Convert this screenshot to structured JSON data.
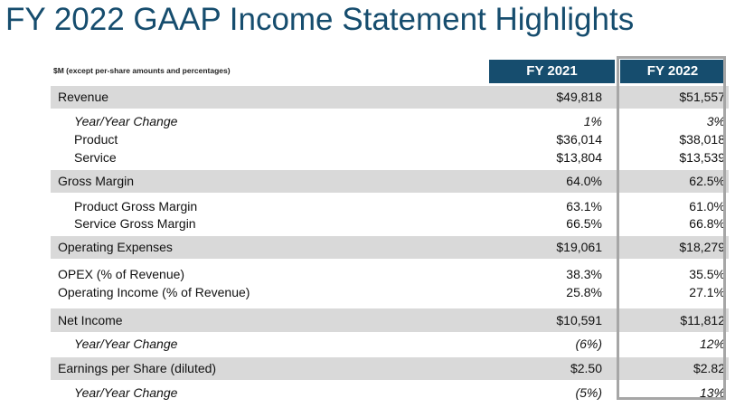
{
  "title": "FY 2022 GAAP Income Statement Highlights",
  "subtitle": "$M (except per-share amounts and percentages)",
  "columns": [
    "FY 2021",
    "FY 2022"
  ],
  "rows": [
    {
      "label": "Revenue",
      "fy2021": "$49,818",
      "fy2022": "$51,557"
    },
    {
      "label": "Year/Year Change",
      "fy2021": "1%",
      "fy2022": "3%"
    },
    {
      "label": "Product",
      "fy2021": "$36,014",
      "fy2022": "$38,018"
    },
    {
      "label": "Service",
      "fy2021": "$13,804",
      "fy2022": "$13,539"
    },
    {
      "label": "Gross Margin",
      "fy2021": "64.0%",
      "fy2022": "62.5%"
    },
    {
      "label": "Product Gross Margin",
      "fy2021": "63.1%",
      "fy2022": "61.0%"
    },
    {
      "label": "Service Gross Margin",
      "fy2021": "66.5%",
      "fy2022": "66.8%"
    },
    {
      "label": "Operating Expenses",
      "fy2021": "$19,061",
      "fy2022": "$18,279"
    },
    {
      "label": "OPEX (% of Revenue)",
      "fy2021": "38.3%",
      "fy2022": "35.5%"
    },
    {
      "label": "Operating Income (% of Revenue)",
      "fy2021": "25.8%",
      "fy2022": "27.1%"
    },
    {
      "label": "Net Income",
      "fy2021": "$10,591",
      "fy2022": "$11,812"
    },
    {
      "label": "Year/Year Change",
      "fy2021": "(6%)",
      "fy2022": "12%"
    },
    {
      "label": "Earnings per Share (diluted)",
      "fy2021": "$2.50",
      "fy2022": "$2.82"
    },
    {
      "label": "Year/Year Change",
      "fy2021": "(5%)",
      "fy2022": "13%"
    }
  ],
  "colors": {
    "title": "#164d6e",
    "header_bg": "#164d6e",
    "row_shade": "#d9d9d9",
    "highlight_border": "#a6a6a6"
  }
}
